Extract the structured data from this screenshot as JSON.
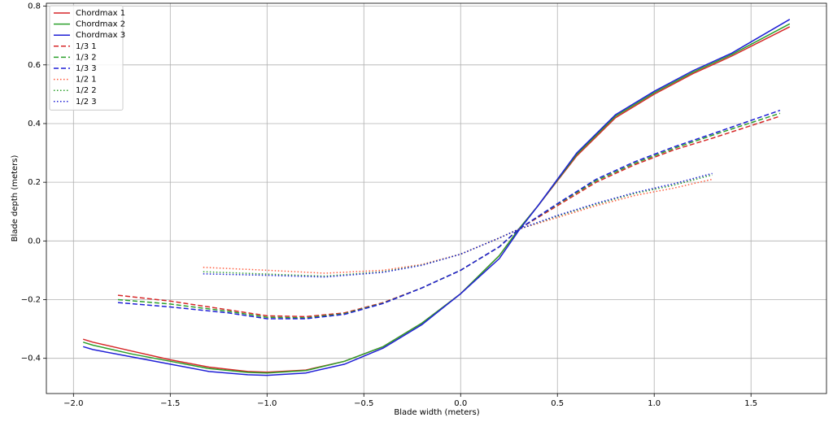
{
  "chart_data": {
    "type": "line",
    "xlabel": "Blade width (meters)",
    "ylabel": "Blade depth (meters)",
    "xlim": [
      -2.14,
      1.89
    ],
    "ylim": [
      -0.52,
      0.81
    ],
    "xticks": [
      {
        "value": -2.0,
        "label": "−2.0"
      },
      {
        "value": -1.5,
        "label": "−1.5"
      },
      {
        "value": -1.0,
        "label": "−1.0"
      },
      {
        "value": -0.5,
        "label": "−0.5"
      },
      {
        "value": 0,
        "label": "0.0"
      },
      0.5,
      {
        "value": 1,
        "label": "1.0"
      },
      1.5
    ],
    "yticks": [
      {
        "value": -0.4,
        "label": "−0.4"
      },
      {
        "value": -0.2,
        "label": "−0.2"
      },
      {
        "value": 0,
        "label": "0.0"
      },
      0.2,
      0.4,
      0.6,
      0.8
    ],
    "grid": true,
    "legend": "upper left",
    "series": [
      {
        "name": "Chordmax 1",
        "color": "#d62728",
        "style": "solid",
        "x": [
          -1.95,
          -1.9,
          -1.7,
          -1.5,
          -1.3,
          -1.1,
          -1.0,
          -0.8,
          -0.6,
          -0.4,
          -0.2,
          0.0,
          0.2,
          0.3,
          0.4,
          0.6,
          0.8,
          1.0,
          1.2,
          1.4,
          1.7
        ],
        "values": [
          -0.335,
          -0.345,
          -0.375,
          -0.405,
          -0.43,
          -0.445,
          -0.447,
          -0.44,
          -0.41,
          -0.36,
          -0.28,
          -0.18,
          -0.05,
          0.04,
          0.12,
          0.29,
          0.42,
          0.5,
          0.57,
          0.63,
          0.73
        ]
      },
      {
        "name": "Chordmax 2",
        "color": "#2ca02c",
        "style": "solid",
        "x": [
          -1.95,
          -1.9,
          -1.7,
          -1.5,
          -1.3,
          -1.1,
          -1.0,
          -0.8,
          -0.6,
          -0.4,
          -0.2,
          0.0,
          0.2,
          0.3,
          0.4,
          0.6,
          0.8,
          1.0,
          1.2,
          1.4,
          1.7
        ],
        "values": [
          -0.345,
          -0.355,
          -0.385,
          -0.41,
          -0.435,
          -0.448,
          -0.45,
          -0.442,
          -0.41,
          -0.36,
          -0.28,
          -0.18,
          -0.05,
          0.04,
          0.12,
          0.295,
          0.425,
          0.505,
          0.575,
          0.635,
          0.74
        ]
      },
      {
        "name": "Chordmax 3",
        "color": "#1f1fd6",
        "style": "solid",
        "x": [
          -1.95,
          -1.9,
          -1.7,
          -1.5,
          -1.3,
          -1.1,
          -1.0,
          -0.8,
          -0.6,
          -0.4,
          -0.2,
          0.0,
          0.2,
          0.3,
          0.4,
          0.6,
          0.8,
          1.0,
          1.2,
          1.4,
          1.7
        ],
        "values": [
          -0.36,
          -0.37,
          -0.395,
          -0.42,
          -0.445,
          -0.456,
          -0.458,
          -0.45,
          -0.42,
          -0.365,
          -0.285,
          -0.18,
          -0.06,
          0.035,
          0.12,
          0.3,
          0.43,
          0.51,
          0.58,
          0.64,
          0.755
        ]
      },
      {
        "name": "1/3 1",
        "color": "#d62728",
        "style": "dashed",
        "x": [
          -1.77,
          -1.5,
          -1.2,
          -1.0,
          -0.8,
          -0.6,
          -0.4,
          -0.2,
          0.0,
          0.2,
          0.3,
          0.5,
          0.7,
          0.9,
          1.1,
          1.3,
          1.65
        ],
        "values": [
          -0.185,
          -0.205,
          -0.235,
          -0.255,
          -0.258,
          -0.245,
          -0.21,
          -0.16,
          -0.1,
          -0.02,
          0.04,
          0.12,
          0.2,
          0.26,
          0.31,
          0.35,
          0.425
        ]
      },
      {
        "name": "1/3 2",
        "color": "#2ca02c",
        "style": "dashed",
        "x": [
          -1.77,
          -1.5,
          -1.2,
          -1.0,
          -0.8,
          -0.6,
          -0.4,
          -0.2,
          0.0,
          0.2,
          0.3,
          0.5,
          0.7,
          0.9,
          1.1,
          1.3,
          1.65
        ],
        "values": [
          -0.2,
          -0.215,
          -0.24,
          -0.26,
          -0.262,
          -0.248,
          -0.212,
          -0.16,
          -0.1,
          -0.02,
          0.04,
          0.125,
          0.205,
          0.265,
          0.315,
          0.36,
          0.435
        ]
      },
      {
        "name": "1/3 3",
        "color": "#1f1fd6",
        "style": "dashed",
        "x": [
          -1.77,
          -1.5,
          -1.2,
          -1.0,
          -0.8,
          -0.6,
          -0.4,
          -0.2,
          0.0,
          0.2,
          0.3,
          0.5,
          0.7,
          0.9,
          1.1,
          1.3,
          1.65
        ],
        "values": [
          -0.21,
          -0.225,
          -0.245,
          -0.265,
          -0.265,
          -0.25,
          -0.213,
          -0.16,
          -0.1,
          -0.02,
          0.04,
          0.127,
          0.21,
          0.27,
          0.32,
          0.365,
          0.445
        ]
      },
      {
        "name": "1/2 1",
        "color": "#ff5a3c",
        "style": "dotted",
        "x": [
          -1.33,
          -1.0,
          -0.7,
          -0.4,
          -0.2,
          0.0,
          0.2,
          0.3,
          0.5,
          0.7,
          0.9,
          1.1,
          1.3
        ],
        "values": [
          -0.09,
          -0.1,
          -0.11,
          -0.1,
          -0.08,
          -0.045,
          0.01,
          0.04,
          0.08,
          0.12,
          0.155,
          0.18,
          0.21
        ]
      },
      {
        "name": "1/2 2",
        "color": "#2ca02c",
        "style": "dotted",
        "x": [
          -1.33,
          -1.0,
          -0.7,
          -0.4,
          -0.2,
          0.0,
          0.2,
          0.3,
          0.5,
          0.7,
          0.9,
          1.1,
          1.3
        ],
        "values": [
          -0.105,
          -0.113,
          -0.12,
          -0.105,
          -0.082,
          -0.045,
          0.01,
          0.04,
          0.085,
          0.125,
          0.162,
          0.19,
          0.225
        ]
      },
      {
        "name": "1/2 3",
        "color": "#1f1fd6",
        "style": "dotted",
        "x": [
          -1.33,
          -1.0,
          -0.7,
          -0.4,
          -0.2,
          0.0,
          0.2,
          0.3,
          0.5,
          0.7,
          0.9,
          1.1,
          1.3
        ],
        "values": [
          -0.112,
          -0.117,
          -0.123,
          -0.107,
          -0.083,
          -0.045,
          0.01,
          0.04,
          0.087,
          0.128,
          0.165,
          0.195,
          0.23
        ]
      }
    ]
  }
}
